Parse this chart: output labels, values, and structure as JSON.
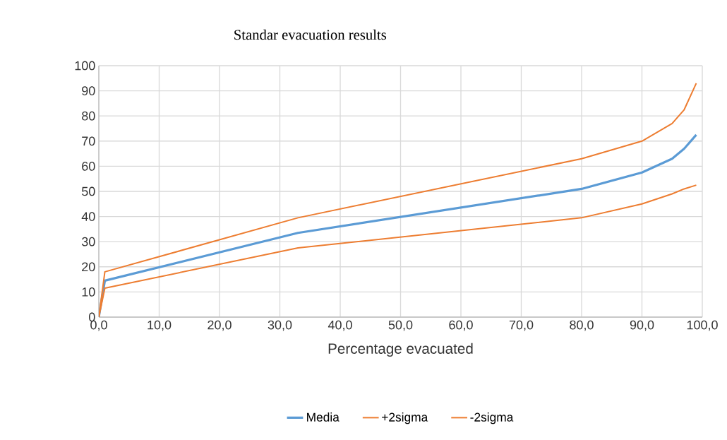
{
  "chart_data": {
    "type": "line",
    "title": "Standar evacuation results",
    "xlabel": "Percentage evacuated",
    "series": [
      {
        "name": "Media",
        "color": "#5b9bd5",
        "x": [
          0,
          1,
          33,
          80,
          90,
          95,
          97,
          99
        ],
        "values": [
          0,
          14.5,
          33.5,
          51,
          57.5,
          63,
          67,
          72.5
        ]
      },
      {
        "name": "+2sigma",
        "color": "#ed7d31",
        "x": [
          0,
          1,
          33,
          80,
          90,
          95,
          97,
          99
        ],
        "values": [
          0,
          18,
          39.5,
          63,
          70,
          77,
          82.5,
          93
        ]
      },
      {
        "name": "-2sigma",
        "color": "#ed7d31",
        "x": [
          0,
          1,
          33,
          80,
          90,
          95,
          97,
          99
        ],
        "values": [
          0,
          11.5,
          27.5,
          39.5,
          45,
          49,
          51,
          52.5
        ]
      }
    ],
    "xlim": [
      0,
      100
    ],
    "ylim": [
      0,
      100
    ],
    "xticks": [
      {
        "value": 0,
        "label": "0,0"
      },
      {
        "value": 10,
        "label": "10,0"
      },
      {
        "value": 20,
        "label": "20,0"
      },
      {
        "value": 30,
        "label": "30,0"
      },
      {
        "value": 40,
        "label": "40,0"
      },
      {
        "value": 50,
        "label": "50,0"
      },
      {
        "value": 60,
        "label": "60,0"
      },
      {
        "value": 70,
        "label": "70,0"
      },
      {
        "value": 80,
        "label": "80,0"
      },
      {
        "value": 90,
        "label": "90,0"
      },
      {
        "value": 100,
        "label": "100,0"
      }
    ],
    "yticks": [
      0,
      10,
      20,
      30,
      40,
      50,
      60,
      70,
      80,
      90,
      100
    ],
    "grid": true,
    "legend": "bottom",
    "marker": "none",
    "line_style": "solid"
  }
}
